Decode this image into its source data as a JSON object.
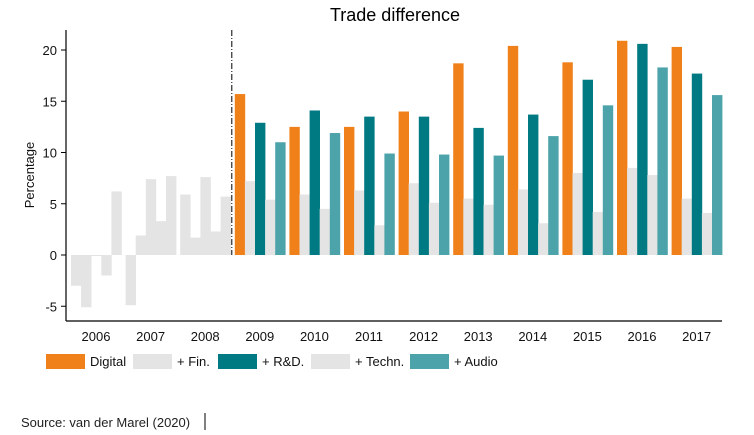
{
  "chart_data": {
    "type": "bar",
    "title": "Trade difference",
    "xlabel": "",
    "ylabel": "Percentage",
    "ylim": [
      -7,
      22
    ],
    "yticks": [
      -5,
      0,
      5,
      10,
      15,
      20
    ],
    "yticklabels": [
      "-5",
      "0",
      "5",
      "10",
      "15",
      "20"
    ],
    "categories": [
      "2006",
      "2007",
      "2008",
      "2009",
      "2010",
      "2011",
      "2012",
      "2013",
      "2014",
      "2015",
      "2016",
      "2017"
    ],
    "divider_after": "2008",
    "pre_divider_color": "#e3e4e3",
    "series": [
      {
        "name": "Digital",
        "color": "#f0811a",
        "values": [
          -3.0,
          -4.9,
          5.9,
          15.7,
          12.5,
          12.5,
          14.0,
          18.7,
          20.4,
          18.8,
          20.9,
          20.3
        ]
      },
      {
        "name": "+ Fin.",
        "color": "#e3e4e3",
        "values": [
          -5.1,
          1.9,
          1.7,
          7.2,
          5.9,
          6.3,
          7.0,
          5.5,
          6.4,
          8.0,
          8.5,
          5.5
        ]
      },
      {
        "name": "+ R&D.",
        "color": "#007a82",
        "values": [
          -0.1,
          7.4,
          7.6,
          12.9,
          14.1,
          13.5,
          13.5,
          12.4,
          13.7,
          17.1,
          20.6,
          17.7
        ]
      },
      {
        "name": "+ Techn.",
        "color": "#e3e4e3",
        "values": [
          -2.0,
          3.3,
          2.3,
          5.4,
          4.5,
          2.9,
          5.1,
          4.9,
          3.1,
          4.2,
          7.8,
          4.1
        ]
      },
      {
        "name": "+ Audio",
        "color": "#4ca3a9",
        "values": [
          6.2,
          7.7,
          5.7,
          11.0,
          11.9,
          9.9,
          9.8,
          9.7,
          11.6,
          14.6,
          18.3,
          15.6
        ]
      }
    ],
    "legend_position": "bottom",
    "grid": false
  },
  "source": "Source: van der Marel (2020)"
}
